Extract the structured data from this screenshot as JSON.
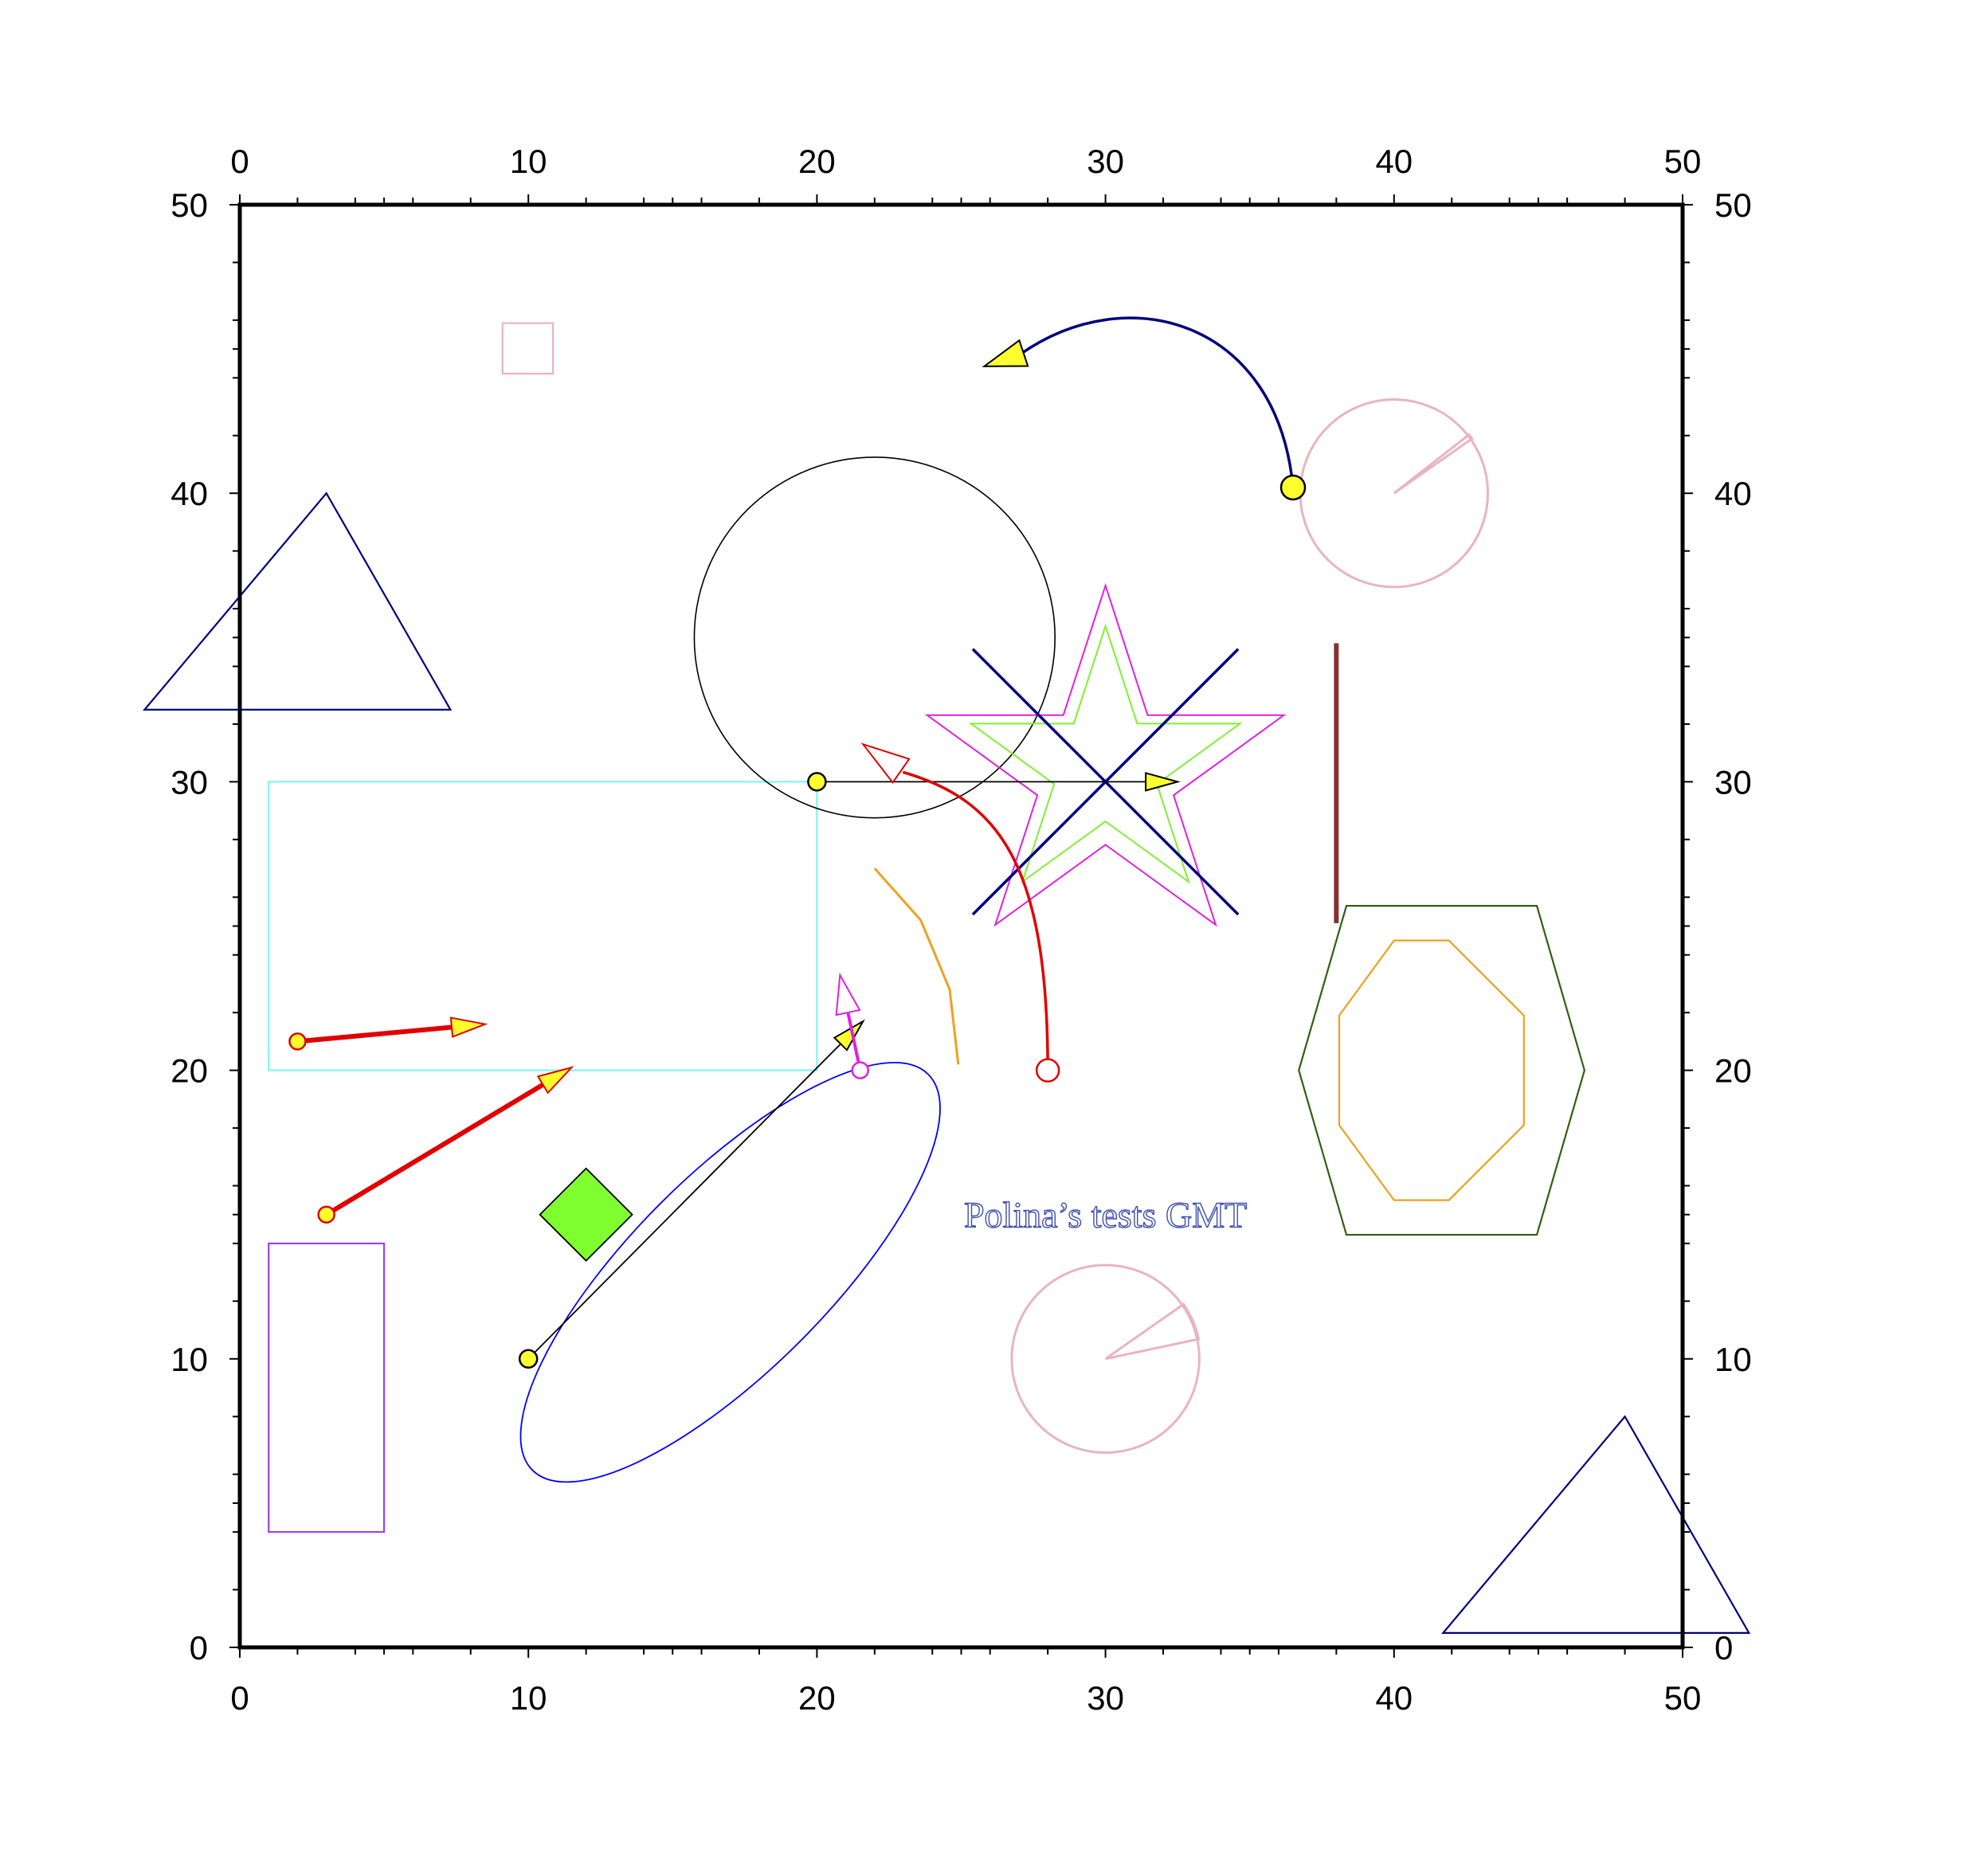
{
  "chart_data": {
    "type": "diagram",
    "title": "",
    "xlabel": "",
    "ylabel": "",
    "xlim": [
      0,
      50
    ],
    "ylim": [
      0,
      50
    ],
    "major_ticks": [
      0,
      10,
      20,
      30,
      40,
      50
    ],
    "tick_labels": [
      "0",
      "10",
      "20",
      "30",
      "40",
      "50"
    ],
    "annotations": [
      {
        "text": "Polina’s tests GMT",
        "x": 30,
        "y": 15,
        "color": "#3f4fb0"
      }
    ],
    "shapes": [
      {
        "name": "pink-square",
        "kind": "square",
        "x": 10,
        "y": 45,
        "size": 3.5,
        "stroke": "#e8b4c0"
      },
      {
        "name": "navy-triangle-left",
        "kind": "polygon",
        "points": [
          [
            3,
            40
          ],
          [
            -3.3,
            32.5
          ],
          [
            7.3,
            32.5
          ]
        ],
        "stroke": "#000080"
      },
      {
        "name": "navy-triangle-right",
        "kind": "polygon",
        "points": [
          [
            48,
            8
          ],
          [
            41.7,
            0.5
          ],
          [
            52.3,
            0.5
          ]
        ],
        "stroke": "#000080"
      },
      {
        "name": "cyan-rectangle",
        "kind": "rect",
        "x0": 1,
        "y0": 20,
        "x1": 20,
        "y1": 30,
        "stroke": "#7ff5f0"
      },
      {
        "name": "purple-rectangle",
        "kind": "rect",
        "x0": 1,
        "y0": 4,
        "x1": 5,
        "y1": 14,
        "stroke": "#a040f0"
      },
      {
        "name": "green-diamond",
        "kind": "diamond",
        "x": 12,
        "y": 15,
        "size": 3.2,
        "fill": "#80ff30",
        "stroke": "#000000"
      },
      {
        "name": "black-circle",
        "kind": "circle",
        "x": 22,
        "y": 35,
        "r": 6.25,
        "stroke": "#000000"
      },
      {
        "name": "pink-circle-upper",
        "kind": "circle",
        "x": 40,
        "y": 40,
        "r": 3.25,
        "stroke": "#e8b4c0"
      },
      {
        "name": "pink-circle-lower",
        "kind": "circle",
        "x": 30,
        "y": 10,
        "r": 3.25,
        "stroke": "#e8b4c0"
      },
      {
        "name": "blue-ellipse",
        "kind": "ellipse",
        "x": 17,
        "y": 13,
        "rx": 9.7,
        "ry": 3.4,
        "angle": 45,
        "stroke": "#0000ff"
      },
      {
        "name": "magenta-star",
        "kind": "star",
        "x": 30,
        "y": 30.3,
        "r": 6.5,
        "stroke": "#e020e0"
      },
      {
        "name": "green-star",
        "kind": "star",
        "x": 30,
        "y": 30.5,
        "r": 4.9,
        "stroke": "#80f030"
      },
      {
        "name": "navy-cross",
        "kind": "cross",
        "x": 30,
        "y": 30,
        "half": 4.6,
        "stroke": "#000080"
      },
      {
        "name": "dark-green-hexagon",
        "kind": "polygon",
        "stroke": "#306010",
        "points": [
          [
            36.7,
            20
          ],
          [
            38.35,
            25.7
          ],
          [
            44.95,
            25.7
          ],
          [
            46.6,
            20
          ],
          [
            44.95,
            14.3
          ],
          [
            38.35,
            14.3
          ]
        ]
      },
      {
        "name": "orange-octagon",
        "kind": "polygon",
        "stroke": "#f0a020",
        "points": [
          [
            38.1,
            18.1
          ],
          [
            38.1,
            21.9
          ],
          [
            40,
            24.5
          ],
          [
            41.9,
            24.5
          ],
          [
            44.5,
            21.9
          ],
          [
            44.5,
            18.1
          ],
          [
            41.9,
            15.5
          ],
          [
            40,
            15.5
          ]
        ]
      },
      {
        "name": "brown-bar",
        "kind": "line",
        "points": [
          [
            38,
            34.8
          ],
          [
            38,
            25.1
          ]
        ],
        "stroke": "#8a3030",
        "width": 6
      },
      {
        "name": "orange-arc",
        "kind": "polyline",
        "stroke": "#f0a020",
        "points": [
          [
            22,
            27
          ],
          [
            23.6,
            25.2
          ],
          [
            24.6,
            22.8
          ],
          [
            24.9,
            20.2
          ]
        ]
      }
    ],
    "vectors": [
      {
        "name": "black-vector-upper",
        "from": [
          20,
          30
        ],
        "to": [
          32.5,
          30
        ],
        "stroke": "#000000",
        "head": "#ffff30"
      },
      {
        "name": "black-vector-lower",
        "from": [
          10,
          10
        ],
        "to": [
          21.6,
          21.7
        ],
        "stroke": "#000000",
        "head": "#ffff30"
      },
      {
        "name": "red-vector-short",
        "from": [
          2,
          21
        ],
        "to": [
          8.5,
          21.6
        ],
        "stroke": "#e00000",
        "head": "#ffff30"
      },
      {
        "name": "red-vector-long",
        "from": [
          3,
          15
        ],
        "to": [
          11.5,
          20.1
        ],
        "stroke": "#e00000",
        "head": "#ffff30"
      },
      {
        "name": "magenta-vector",
        "from": [
          21.5,
          20
        ],
        "to": [
          20.8,
          23.3
        ],
        "stroke": "#e020e0",
        "head": "none"
      }
    ],
    "arcs": [
      {
        "name": "red-curved-arrow",
        "from": [
          28,
          20
        ],
        "to": [
          21.6,
          31.3
        ],
        "stroke": "#e00000",
        "head": "none"
      },
      {
        "name": "navy-curved-arrow",
        "from": [
          36.5,
          40.2
        ],
        "to": [
          25.8,
          44.4
        ],
        "stroke": "#000080",
        "head": "#ffff30"
      }
    ],
    "wedges": [
      {
        "name": "pink-wedge-upper",
        "x": 40,
        "y": 40,
        "r": 3.3,
        "start_deg": 35,
        "end_deg": 38,
        "stroke": "#e8b4c0"
      },
      {
        "name": "pink-wedge-lower",
        "x": 30,
        "y": 10,
        "r": 3.3,
        "start_deg": 12,
        "end_deg": 35,
        "stroke": "#e8b4c0"
      }
    ]
  }
}
